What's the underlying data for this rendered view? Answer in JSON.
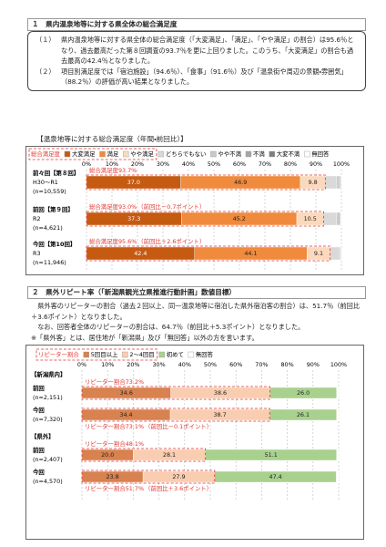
{
  "section1": {
    "heading": "１　県内温泉地等に対する県全体の総合満足度",
    "items": [
      {
        "label": "（１）",
        "text": "県内温泉地等に対する県全体の総合満足度（「大変満足」、「満足」、「やや満足」の割合）は95.6％となり、過去最高だった第８回調査の93.7％を更に上回りました。このうち、「大変満足」の割合も過去最高の42.4％となりました。"
      },
      {
        "label": "（２）",
        "text": "項目別満足度では「宿泊施設」（94.6％）、「食事」（91.6％）及び「温泉街や周辺の景観・雰囲気」（88.2％）の評価が高い結果となりました。"
      }
    ]
  },
  "section2": {
    "heading": "２　県外リピート率（「新潟県観光立県推進行動計画」数値目標）",
    "paragraphs": [
      "県外客のリピーターの割合（過去２回以上、同一温泉地等に宿泊した県外宿泊客の割合）は、51.7％（前回比＋3.6ポイント）となりました。",
      "なお、回答者全体のリピーターの割合は、64.7％（前回比＋5.3ポイント）となりました。",
      "※「県外客」とは、居住地が「新潟県」及び「無回答」以外の方を言います。"
    ]
  },
  "chart_data": [
    {
      "type": "stacked-bar-horizontal",
      "title": "【温泉地等に対する総合満足度（年間・前回比）】",
      "total_label": "総合満足度",
      "categories": [
        "前々回【第８回】",
        "前回【第９回】",
        "今回【第10回】"
      ],
      "periods": [
        "H30～R1",
        "R2",
        "R3"
      ],
      "sample_sizes": [
        "(n=10,559)",
        "(n=4,621)",
        "(n=11,946)"
      ],
      "annotations": [
        {
          "text": "総合満足度93.7%"
        },
        {
          "text": "総合満足度93.0%",
          "detail": "（前回比－0.7ポイント）"
        },
        {
          "text": "総合満足度95.6%",
          "detail": "（前回比＋2.6ポイント）"
        }
      ],
      "xlim": [
        0,
        100
      ],
      "xticks": [
        {
          "value": 0,
          "label": "0%"
        },
        {
          "value": 10,
          "label": "10%"
        },
        {
          "value": 20,
          "label": "20%"
        },
        {
          "value": 30,
          "label": "30%"
        },
        {
          "value": 40,
          "label": "40%"
        },
        {
          "value": 50,
          "label": "50%"
        },
        {
          "value": 60,
          "label": "60%"
        },
        {
          "value": 70,
          "label": "70%"
        },
        {
          "value": 80,
          "label": "80%"
        },
        {
          "value": 90,
          "label": "90%"
        },
        {
          "value": 100,
          "label": "100%"
        }
      ],
      "grid": true,
      "series": [
        {
          "name": "大変満足",
          "color": "#c55a11",
          "label_color": "#ffffff",
          "in_total": true,
          "values": [
            37.0,
            37.3,
            42.4
          ],
          "value_labels": [
            "37.0",
            "37.3",
            "42.4"
          ]
        },
        {
          "name": "満足",
          "color": "#f08a3c",
          "label_color": "#222222",
          "in_total": true,
          "values": [
            46.9,
            45.2,
            44.1
          ],
          "value_labels": [
            "46.9",
            "45.2",
            "44.1"
          ]
        },
        {
          "name": "やや満足",
          "color": "#fbd9bd",
          "label_color": "#222222",
          "in_total": true,
          "values": [
            9.8,
            10.5,
            9.1
          ],
          "value_labels": [
            "9.8",
            "10.5",
            "9.1"
          ]
        },
        {
          "name": "どちらでもない",
          "color": "#d9d9d9",
          "in_total": false,
          "values": [
            4.5,
            5.2,
            3.4
          ]
        },
        {
          "name": "やや不満",
          "color": "#c8c8c8",
          "in_total": false,
          "values": [
            1.0,
            1.2,
            0.6
          ]
        },
        {
          "name": "不満",
          "color": "#a6a6a6",
          "in_total": false,
          "values": [
            0.4,
            0.3,
            0.2
          ]
        },
        {
          "name": "大変不満",
          "color": "#7f7f7f",
          "in_total": false,
          "values": [
            0.2,
            0.1,
            0.1
          ]
        },
        {
          "name": "無回答",
          "color": "#ffffff",
          "in_total": false,
          "values": [
            0.2,
            0.2,
            0.1
          ]
        }
      ]
    },
    {
      "type": "stacked-bar-horizontal",
      "total_label": "リピーター割合",
      "row_groups": [
        "【新潟県内】",
        null,
        "【県外】",
        null
      ],
      "categories": [
        "前回",
        "今回",
        "前回",
        "今回"
      ],
      "sample_sizes": [
        "(n=2,151)",
        "(n=7,320)",
        "(n=2,407)",
        "(n=4,570)"
      ],
      "annotations": [
        {
          "text": "リピーター割合73.2%"
        },
        {
          "text": "リピーター割合73.1%",
          "detail": "（前回比－0.1ポイント）"
        },
        {
          "text": "リピーター割合48.1%"
        },
        {
          "text": "リピーター割合51.7%",
          "detail": "（前回比＋3.6ポイント）"
        }
      ],
      "xlim": [
        0,
        100
      ],
      "xticks": [
        {
          "value": 0,
          "label": "0%"
        },
        {
          "value": 10,
          "label": "10%"
        },
        {
          "value": 20,
          "label": "20%"
        },
        {
          "value": 30,
          "label": "30%"
        },
        {
          "value": 40,
          "label": "40%"
        },
        {
          "value": 50,
          "label": "50%"
        },
        {
          "value": 60,
          "label": "60%"
        },
        {
          "value": 70,
          "label": "70%"
        },
        {
          "value": 80,
          "label": "80%"
        },
        {
          "value": 90,
          "label": "90%"
        },
        {
          "value": 100,
          "label": "100%"
        }
      ],
      "grid": true,
      "series": [
        {
          "name": "5回目以上",
          "color": "#d8824f",
          "label_color": "#222222",
          "in_total": true,
          "values": [
            34.6,
            34.4,
            20.0,
            23.8
          ],
          "value_labels": [
            "34.6",
            "34.4",
            "20.0",
            "23.8"
          ]
        },
        {
          "name": "2～4回目",
          "color": "#f9cdb0",
          "label_color": "#222222",
          "in_total": true,
          "values": [
            38.6,
            38.7,
            28.1,
            27.9
          ],
          "value_labels": [
            "38.6",
            "38.7",
            "28.1",
            "27.9"
          ]
        },
        {
          "name": "初めて",
          "color": "#a9d18e",
          "label_color": "#222222",
          "in_total": false,
          "values": [
            26.0,
            26.1,
            51.1,
            47.4
          ],
          "value_labels": [
            "26.0",
            "26.1",
            "51.1",
            "47.4"
          ]
        },
        {
          "name": "無回答",
          "color": "#ffffff",
          "in_total": false,
          "values": [
            0.8,
            0.8,
            0.8,
            0.9
          ]
        }
      ]
    }
  ]
}
